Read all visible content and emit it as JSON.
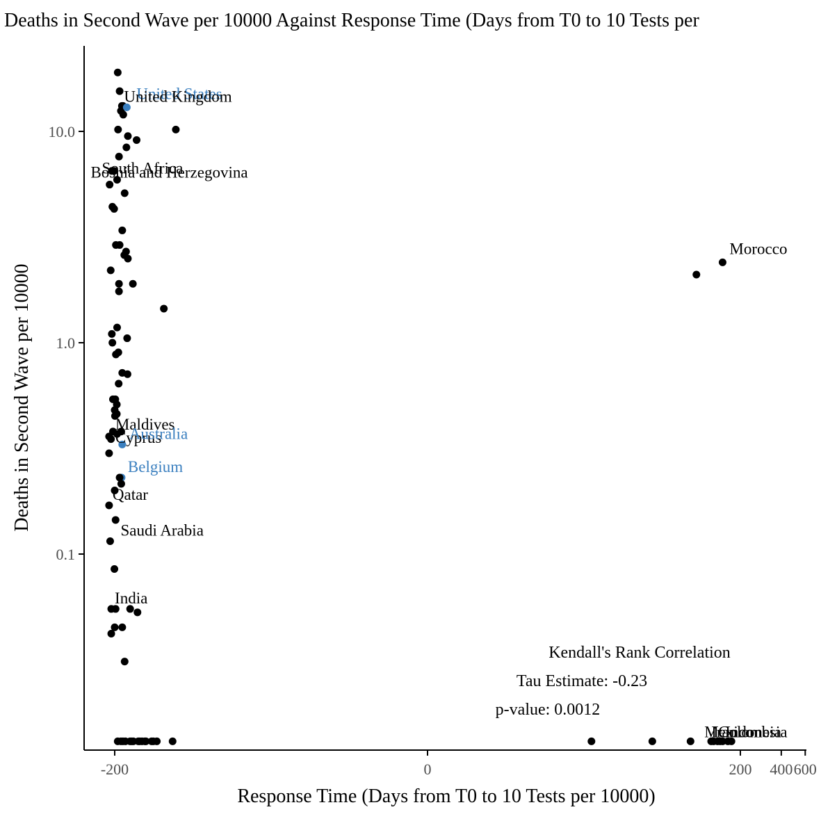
{
  "chart_data": {
    "type": "scatter",
    "title": "Deaths in Second Wave per 10000 Against Response Time (Days from T0 to 10 Tests per",
    "xlabel": "Response Time (Days from T0 to 10 Tests per 10000)",
    "ylabel": "Deaths in Second Wave per 10000",
    "x_scale": "pseudo-log (symmetric)",
    "y_scale": "log10",
    "x_ticks": [
      {
        "value": -200,
        "label": "-200"
      },
      {
        "value": 0,
        "label": "0"
      },
      {
        "value": 200,
        "label": "200"
      },
      {
        "value": 400,
        "label": "400"
      },
      {
        "value": 600,
        "label": "600"
      }
    ],
    "y_ticks": [
      {
        "value": 0.1,
        "label": "0.1"
      },
      {
        "value": 1.0,
        "label": "1.0"
      },
      {
        "value": 10.0,
        "label": "10.0"
      }
    ],
    "grid": false,
    "legend": "none",
    "colors": {
      "default_point": "#000000",
      "highlight": "#3a7fbf"
    },
    "annotation": {
      "title": "Kendall's Rank Correlation",
      "tau": "Tau Estimate: -0.23",
      "pvalue": "p-value: 0.0012"
    },
    "labeled_points": [
      {
        "name": "United States",
        "x": -163,
        "y": 13.0,
        "highlight": true
      },
      {
        "name": "United Kingdom",
        "x": -163,
        "y": 13.0,
        "highlight": false
      },
      {
        "name": "South Africa",
        "x": -192,
        "y": 5.9,
        "highlight": false
      },
      {
        "name": "Bosnia and Herzegovina",
        "x": -192,
        "y": 5.9,
        "highlight": false
      },
      {
        "name": "Morocco",
        "x": 148,
        "y": 2.4,
        "highlight": false
      },
      {
        "name": "Maldives",
        "x": -220,
        "y": 0.36,
        "highlight": false
      },
      {
        "name": "Cyprus",
        "x": -220,
        "y": 0.3,
        "highlight": false
      },
      {
        "name": "Australia",
        "x": -176,
        "y": 0.33,
        "highlight": true
      },
      {
        "name": "Belgium",
        "x": -178,
        "y": 0.23,
        "highlight": true
      },
      {
        "name": "Qatar",
        "x": -220,
        "y": 0.17,
        "highlight": false
      },
      {
        "name": "Saudi Arabia",
        "x": -216,
        "y": 0.115,
        "highlight": false
      },
      {
        "name": "India",
        "x": -212,
        "y": 0.055,
        "highlight": false
      },
      {
        "name": "Mexico",
        "x": 170,
        "y": 0.013,
        "highlight": false
      },
      {
        "name": "Iran",
        "x": 170,
        "y": 0.013,
        "highlight": false
      },
      {
        "name": "Colombia",
        "x": 170,
        "y": 0.013,
        "highlight": false
      },
      {
        "name": "Indonesia",
        "x": 170,
        "y": 0.013,
        "highlight": false
      }
    ],
    "points": [
      {
        "x": -190,
        "y": 19.0
      },
      {
        "x": -184,
        "y": 15.5
      },
      {
        "x": -177,
        "y": 13.2
      },
      {
        "x": -174,
        "y": 13.2
      },
      {
        "x": -180,
        "y": 12.5
      },
      {
        "x": -173,
        "y": 12.0
      },
      {
        "x": -163,
        "y": 13.0,
        "highlight": true
      },
      {
        "x": -189,
        "y": 10.2
      },
      {
        "x": -71,
        "y": 10.2
      },
      {
        "x": -160,
        "y": 9.5
      },
      {
        "x": -138,
        "y": 9.1
      },
      {
        "x": -164,
        "y": 8.4
      },
      {
        "x": -186,
        "y": 7.6
      },
      {
        "x": -210,
        "y": 6.5
      },
      {
        "x": -202,
        "y": 6.5
      },
      {
        "x": -192,
        "y": 5.9
      },
      {
        "x": -218,
        "y": 5.6
      },
      {
        "x": -169,
        "y": 5.1
      },
      {
        "x": -208,
        "y": 4.4
      },
      {
        "x": -202,
        "y": 4.3
      },
      {
        "x": -176,
        "y": 3.4
      },
      {
        "x": -196,
        "y": 2.9
      },
      {
        "x": -184,
        "y": 2.9
      },
      {
        "x": -165,
        "y": 2.7
      },
      {
        "x": -170,
        "y": 2.6
      },
      {
        "x": -160,
        "y": 2.5
      },
      {
        "x": 148,
        "y": 2.4
      },
      {
        "x": 95,
        "y": 2.1
      },
      {
        "x": -214,
        "y": 2.2
      },
      {
        "x": -186,
        "y": 1.9
      },
      {
        "x": -147,
        "y": 1.9
      },
      {
        "x": -186,
        "y": 1.75
      },
      {
        "x": -87,
        "y": 1.45
      },
      {
        "x": -192,
        "y": 1.18
      },
      {
        "x": -210,
        "y": 1.1
      },
      {
        "x": -162,
        "y": 1.05
      },
      {
        "x": -208,
        "y": 1.0
      },
      {
        "x": -188,
        "y": 0.9
      },
      {
        "x": -196,
        "y": 0.88
      },
      {
        "x": -176,
        "y": 0.72
      },
      {
        "x": -161,
        "y": 0.71
      },
      {
        "x": -187,
        "y": 0.64
      },
      {
        "x": -206,
        "y": 0.54
      },
      {
        "x": -198,
        "y": 0.54
      },
      {
        "x": -193,
        "y": 0.51
      },
      {
        "x": -200,
        "y": 0.48
      },
      {
        "x": -199,
        "y": 0.45
      },
      {
        "x": -193,
        "y": 0.46
      },
      {
        "x": -220,
        "y": 0.36
      },
      {
        "x": -206,
        "y": 0.38
      },
      {
        "x": -192,
        "y": 0.37
      },
      {
        "x": -179,
        "y": 0.38
      },
      {
        "x": -213,
        "y": 0.35
      },
      {
        "x": -176,
        "y": 0.33,
        "highlight": true
      },
      {
        "x": -220,
        "y": 0.3
      },
      {
        "x": -178,
        "y": 0.23,
        "highlight": true
      },
      {
        "x": -184,
        "y": 0.23
      },
      {
        "x": -179,
        "y": 0.215
      },
      {
        "x": -200,
        "y": 0.2
      },
      {
        "x": -220,
        "y": 0.17
      },
      {
        "x": -197,
        "y": 0.145
      },
      {
        "x": -216,
        "y": 0.115
      },
      {
        "x": -201,
        "y": 0.085
      },
      {
        "x": -212,
        "y": 0.055
      },
      {
        "x": -197,
        "y": 0.055
      },
      {
        "x": -154,
        "y": 0.055
      },
      {
        "x": -136,
        "y": 0.053
      },
      {
        "x": -200,
        "y": 0.045
      },
      {
        "x": -176,
        "y": 0.045
      },
      {
        "x": -212,
        "y": 0.042
      },
      {
        "x": -169,
        "y": 0.031
      },
      {
        "x": -190,
        "y": 0.013
      },
      {
        "x": -180,
        "y": 0.013
      },
      {
        "x": -174,
        "y": 0.013
      },
      {
        "x": -167,
        "y": 0.013
      },
      {
        "x": -154,
        "y": 0.013
      },
      {
        "x": -150,
        "y": 0.013
      },
      {
        "x": -146,
        "y": 0.013
      },
      {
        "x": -134,
        "y": 0.013
      },
      {
        "x": -131,
        "y": 0.013
      },
      {
        "x": -126,
        "y": 0.013
      },
      {
        "x": -120,
        "y": 0.013
      },
      {
        "x": -118,
        "y": 0.013
      },
      {
        "x": -107,
        "y": 0.013
      },
      {
        "x": -104,
        "y": 0.013
      },
      {
        "x": -98,
        "y": 0.013
      },
      {
        "x": -75,
        "y": 0.013
      },
      {
        "x": 16,
        "y": 0.013
      },
      {
        "x": 45,
        "y": 0.013
      },
      {
        "x": 86,
        "y": 0.013
      },
      {
        "x": 122,
        "y": 0.013
      },
      {
        "x": 127,
        "y": 0.013
      },
      {
        "x": 136,
        "y": 0.013
      },
      {
        "x": 142,
        "y": 0.013
      },
      {
        "x": 148,
        "y": 0.013
      },
      {
        "x": 162,
        "y": 0.013
      },
      {
        "x": 172,
        "y": 0.013
      }
    ]
  }
}
